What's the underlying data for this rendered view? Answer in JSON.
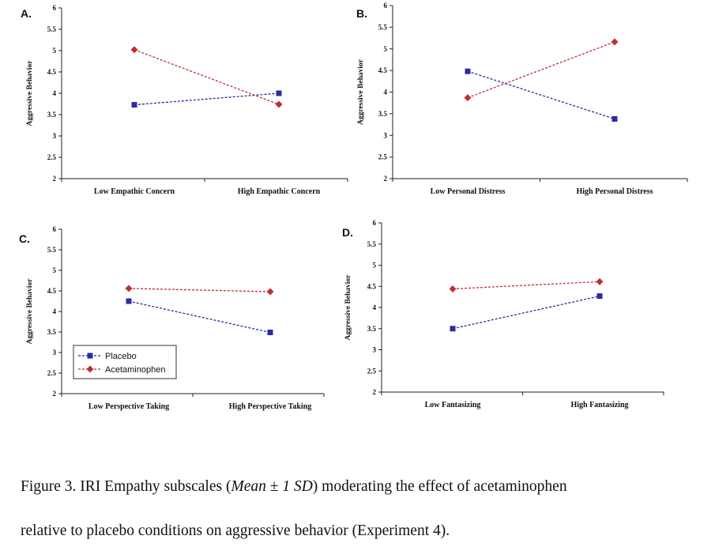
{
  "colors": {
    "placebo": "#2b2ba6",
    "acetaminophen": "#c0302e"
  },
  "chart_data": [
    {
      "panel": "A.",
      "type": "line",
      "ylabel": "Aggressive Behavior",
      "ylim": [
        2,
        6
      ],
      "yticks": [
        "2",
        "2.5",
        "3",
        "3.5",
        "4",
        "4.5",
        "5",
        "5.5",
        "6"
      ],
      "categories": [
        "Low Empathic Concern",
        "High Empathic Concern"
      ],
      "series": [
        {
          "key": "placebo",
          "values": [
            3.73,
            4.0
          ]
        },
        {
          "key": "acetaminophen",
          "values": [
            5.02,
            3.74
          ]
        }
      ]
    },
    {
      "panel": "B.",
      "type": "line",
      "ylabel": "Aggressive Behavior",
      "ylim": [
        2,
        6
      ],
      "yticks": [
        "2",
        "2.5",
        "3",
        "3.5",
        "4",
        "4.5",
        "5",
        "5.5",
        "6"
      ],
      "categories": [
        "Low Personal Distress",
        "High Personal Distress"
      ],
      "series": [
        {
          "key": "placebo",
          "values": [
            4.48,
            3.38
          ]
        },
        {
          "key": "acetaminophen",
          "values": [
            3.87,
            5.16
          ]
        }
      ]
    },
    {
      "panel": "C.",
      "type": "line",
      "ylabel": "Aggressive Behavior",
      "ylim": [
        2,
        6
      ],
      "yticks": [
        "2",
        "2.5",
        "3",
        "3.5",
        "4",
        "4.5",
        "5",
        "5.5",
        "6"
      ],
      "categories": [
        "Low Perspective Taking",
        "High Perspective Taking"
      ],
      "legend": {
        "placement": "bottom-left",
        "items": [
          "Placebo",
          "Acetaminophen"
        ]
      },
      "series": [
        {
          "key": "placebo",
          "name": "Placebo",
          "values": [
            4.25,
            3.49
          ]
        },
        {
          "key": "acetaminophen",
          "name": "Acetaminophen",
          "values": [
            4.56,
            4.48
          ]
        }
      ]
    },
    {
      "panel": "D.",
      "type": "line",
      "ylabel": "Aggressive Behavior",
      "ylim": [
        2,
        6
      ],
      "yticks": [
        "2",
        "2.5",
        "3",
        "3.5",
        "4",
        "4.5",
        "5",
        "5.5",
        "6"
      ],
      "categories": [
        "Low Fantasizing",
        "High Fantasizing"
      ],
      "series": [
        {
          "key": "placebo",
          "values": [
            3.5,
            4.27
          ]
        },
        {
          "key": "acetaminophen",
          "values": [
            4.44,
            4.61
          ]
        }
      ]
    }
  ],
  "caption": {
    "part1": "Figure 3",
    "part2": ". IRI Empathy subscales (",
    "italic1": "Mean",
    "part3": " ± ",
    "italic2": "1 SD",
    "part4": ") moderating the effect of acetaminophen",
    "line2": "relative to placebo conditions on aggressive behavior (Experiment 4)."
  }
}
